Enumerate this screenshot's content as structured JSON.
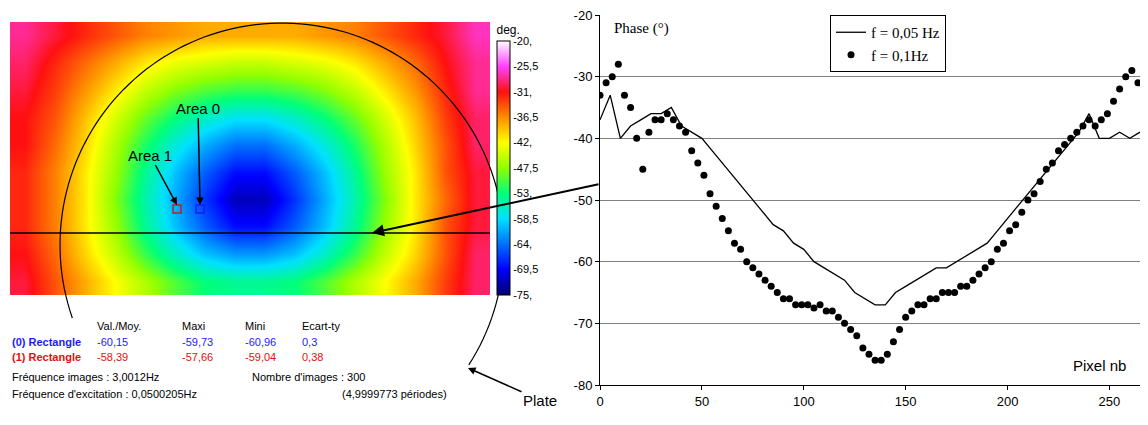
{
  "chart_data": [
    {
      "type": "heatmap",
      "tick_labels": false,
      "colorbar_title": "deg.",
      "zlim": [
        -75,
        -20
      ],
      "zticks": [
        {
          "value": -20,
          "label": "-20,"
        },
        {
          "value": -25.5,
          "label": "-25,5"
        },
        {
          "value": -31,
          "label": "-31,"
        },
        {
          "value": -36.5,
          "label": "-36,5"
        },
        {
          "value": -42,
          "label": "-42,"
        },
        {
          "value": -47.5,
          "label": "-47,5"
        },
        {
          "value": -53,
          "label": "-53,"
        },
        {
          "value": -58.5,
          "label": "-58,5"
        },
        {
          "value": -64,
          "label": "-64,"
        },
        {
          "value": -69.5,
          "label": "-69,5"
        },
        {
          "value": -75,
          "label": "-75,"
        }
      ],
      "cells": [
        [
          -28,
          -30,
          -32,
          -34,
          -36,
          -37,
          -38,
          -38,
          -38,
          -38,
          -37,
          -36,
          -34,
          -32,
          -30,
          -27
        ],
        [
          -29,
          -32,
          -35,
          -38,
          -41,
          -43,
          -44,
          -45,
          -45,
          -44,
          -43,
          -41,
          -38,
          -35,
          -31,
          -28
        ],
        [
          -30,
          -33,
          -37,
          -41,
          -45,
          -48,
          -50,
          -51,
          -51,
          -50,
          -48,
          -45,
          -41,
          -37,
          -32,
          -28
        ],
        [
          -31,
          -34,
          -39,
          -44,
          -49,
          -53,
          -56,
          -58,
          -58,
          -56,
          -53,
          -49,
          -44,
          -39,
          -33,
          -29
        ],
        [
          -31,
          -35,
          -40,
          -46,
          -52,
          -57,
          -61,
          -64,
          -64,
          -61,
          -57,
          -52,
          -46,
          -40,
          -34,
          -29
        ],
        [
          -32,
          -36,
          -41,
          -47,
          -54,
          -60,
          -65,
          -69,
          -69,
          -65,
          -60,
          -54,
          -47,
          -41,
          -34,
          -30
        ],
        [
          -32,
          -36,
          -41,
          -48,
          -55,
          -61,
          -67,
          -72,
          -72,
          -67,
          -61,
          -55,
          -48,
          -41,
          -35,
          -30
        ],
        [
          -32,
          -36,
          -41,
          -47,
          -54,
          -60,
          -65,
          -69,
          -69,
          -65,
          -60,
          -54,
          -47,
          -41,
          -34,
          -30
        ],
        [
          -31,
          -35,
          -40,
          -45,
          -51,
          -56,
          -60,
          -62,
          -62,
          -60,
          -56,
          -51,
          -45,
          -40,
          -34,
          -29
        ],
        [
          -30,
          -34,
          -38,
          -42,
          -46,
          -50,
          -53,
          -54,
          -54,
          -53,
          -50,
          -46,
          -42,
          -38,
          -33,
          -29
        ]
      ],
      "annotations": [
        "Area 0",
        "Area 1",
        "Plate"
      ]
    },
    {
      "type": "line",
      "xlabel": "Pixel nb",
      "ylabel": "Phase (°)",
      "xlim": [
        0,
        265
      ],
      "xticks": [
        0,
        50,
        100,
        150,
        200,
        250
      ],
      "ylim": [
        -80,
        -20
      ],
      "yticks": [
        -80,
        -70,
        -60,
        -50,
        -40,
        -30,
        -20
      ],
      "grid": true,
      "legend": "upper right",
      "series": [
        {
          "name": "f = 0,05 Hz",
          "color": "#000000",
          "type": "line",
          "line_style": "solid",
          "marker": "none",
          "x": [
            0,
            5,
            10,
            15,
            20,
            25,
            30,
            35,
            40,
            45,
            50,
            55,
            60,
            65,
            70,
            75,
            80,
            85,
            90,
            95,
            100,
            105,
            110,
            115,
            120,
            125,
            130,
            135,
            140,
            145,
            150,
            155,
            160,
            165,
            170,
            175,
            180,
            185,
            190,
            195,
            200,
            205,
            210,
            215,
            220,
            225,
            230,
            235,
            240,
            245,
            250,
            255,
            260,
            265
          ],
          "values": [
            -37,
            -33,
            -40,
            -38,
            -37,
            -36,
            -36,
            -35,
            -38,
            -39,
            -40,
            -42,
            -44,
            -46,
            -48,
            -50,
            -52,
            -54,
            -55,
            -57,
            -58,
            -60,
            -61,
            -62,
            -63,
            -65,
            -66,
            -67,
            -67,
            -65,
            -64,
            -63,
            -62,
            -61,
            -61,
            -60,
            -59,
            -58,
            -57,
            -55,
            -53,
            -51,
            -49,
            -47,
            -45,
            -43,
            -41,
            -39,
            -36,
            -40,
            -40,
            -39,
            -40,
            -39
          ]
        },
        {
          "name": "f = 0,1Hz",
          "color": "#000000",
          "type": "scatter",
          "line_style": "none",
          "marker": "circle",
          "x": [
            0,
            3,
            6,
            9,
            12,
            15,
            18,
            21,
            24,
            27,
            30,
            33,
            36,
            39,
            42,
            45,
            48,
            51,
            54,
            57,
            60,
            63,
            66,
            69,
            72,
            75,
            78,
            81,
            84,
            87,
            90,
            93,
            96,
            99,
            102,
            105,
            108,
            111,
            114,
            117,
            120,
            123,
            126,
            129,
            132,
            135,
            138,
            141,
            144,
            147,
            150,
            153,
            156,
            159,
            162,
            165,
            168,
            171,
            174,
            177,
            180,
            183,
            186,
            189,
            192,
            195,
            198,
            201,
            204,
            207,
            210,
            213,
            216,
            219,
            222,
            225,
            228,
            231,
            234,
            237,
            240,
            243,
            246,
            249,
            252,
            255,
            258,
            261,
            264
          ],
          "values": [
            -33,
            -31,
            -30,
            -28,
            -33,
            -35,
            -40,
            -45,
            -39,
            -37,
            -37,
            -36,
            -37,
            -38,
            -39,
            -42,
            -44,
            -46,
            -49,
            -51,
            -53,
            -55,
            -57,
            -58,
            -60,
            -61,
            -62,
            -63,
            -64,
            -65,
            -66,
            -66,
            -67,
            -67,
            -67,
            -67.5,
            -67,
            -68,
            -68,
            -69,
            -70,
            -71,
            -72,
            -74,
            -75,
            -76,
            -76,
            -75,
            -73,
            -71,
            -69,
            -68,
            -67,
            -67,
            -66,
            -66,
            -65,
            -65,
            -65,
            -64,
            -64,
            -63,
            -62,
            -61,
            -60,
            -58,
            -57,
            -55,
            -54,
            -52,
            -50,
            -49,
            -47,
            -45,
            -44,
            -42,
            -41,
            -40,
            -39,
            -38,
            -37,
            -38,
            -37,
            -36,
            -34,
            -32,
            -30,
            -29,
            -31
          ]
        }
      ]
    }
  ],
  "panel_text": {
    "header": [
      "Val./Moy.",
      "Maxi",
      "Mini",
      "Ecart-ty"
    ],
    "rows": [
      {
        "label": "(0) Rectangle",
        "color": "#1a1aff",
        "cells": [
          "-60,15",
          "-59,73",
          "-60,96",
          "0,3"
        ]
      },
      {
        "label": "(1) Rectangle",
        "color": "#e01010",
        "cells": [
          "-58,39",
          "-57,66",
          "-59,04",
          "0,38"
        ]
      }
    ],
    "footer": [
      "Fréquence images : 3,0012Hz",
      "Nombre d'images : 300",
      "Fréquence d'excitation : 0,0500205Hz",
      "(4,9999773 périodes)"
    ]
  }
}
